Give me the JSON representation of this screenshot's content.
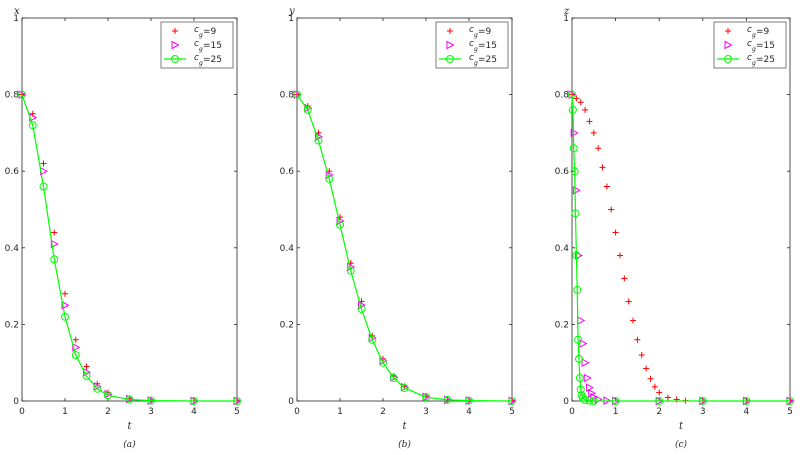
{
  "chart_data": [
    {
      "type": "line",
      "caption": "(a)",
      "xlabel": "t",
      "ylabel": "x",
      "xlim": [
        0,
        5
      ],
      "ylim": [
        0,
        1
      ],
      "xticks": [
        0,
        1,
        2,
        3,
        4,
        5
      ],
      "yticks": [
        0,
        0.2,
        0.4,
        0.6,
        0.8,
        1
      ],
      "legend_position": "top-right",
      "legend": [
        {
          "text": "c",
          "sub": "g",
          "value": "=9",
          "marker": "plus",
          "color": "#ff0000"
        },
        {
          "text": "c",
          "sub": "g",
          "value": "=15",
          "marker": "triangle-right",
          "color": "#ff00ff"
        },
        {
          "text": "c",
          "sub": "g",
          "value": "=25",
          "marker": "circle-line",
          "color": "#00ff00"
        }
      ],
      "series": [
        {
          "name": "c_g=9",
          "marker": "plus",
          "color": "#ff0000",
          "x": [
            0,
            0.25,
            0.5,
            0.75,
            1.0,
            1.25,
            1.5,
            1.75,
            2.0,
            2.5,
            3.0,
            4.0,
            5.0
          ],
          "y": [
            0.8,
            0.75,
            0.62,
            0.44,
            0.28,
            0.16,
            0.09,
            0.045,
            0.022,
            0.006,
            0.002,
            0.0,
            0.0
          ]
        },
        {
          "name": "c_g=15",
          "marker": "triangle-right",
          "color": "#ff00ff",
          "x": [
            0,
            0.25,
            0.5,
            0.75,
            1.0,
            1.25,
            1.5,
            1.75,
            2.0,
            2.5,
            3.0,
            4.0,
            5.0
          ],
          "y": [
            0.8,
            0.74,
            0.6,
            0.41,
            0.25,
            0.14,
            0.075,
            0.038,
            0.018,
            0.005,
            0.001,
            0.0,
            0.0
          ]
        },
        {
          "name": "c_g=25",
          "marker": "circle-line",
          "color": "#00ff00",
          "x": [
            0,
            0.25,
            0.5,
            0.75,
            1.0,
            1.25,
            1.5,
            1.75,
            2.0,
            2.5,
            3.0,
            4.0,
            5.0
          ],
          "y": [
            0.8,
            0.72,
            0.56,
            0.37,
            0.22,
            0.12,
            0.065,
            0.032,
            0.015,
            0.004,
            0.001,
            0.0,
            0.0
          ]
        }
      ]
    },
    {
      "type": "line",
      "caption": "(b)",
      "xlabel": "t",
      "ylabel": "y",
      "xlim": [
        0,
        5
      ],
      "ylim": [
        0,
        1
      ],
      "xticks": [
        0,
        1,
        2,
        3,
        4,
        5
      ],
      "yticks": [
        0,
        0.2,
        0.4,
        0.6,
        0.8,
        1
      ],
      "legend_position": "top-right",
      "legend": [
        {
          "text": "c",
          "sub": "g",
          "value": "=9",
          "marker": "plus",
          "color": "#ff0000"
        },
        {
          "text": "c",
          "sub": "g",
          "value": "=15",
          "marker": "triangle-right",
          "color": "#ff00ff"
        },
        {
          "text": "c",
          "sub": "g",
          "value": "=25",
          "marker": "circle-line",
          "color": "#00ff00"
        }
      ],
      "series": [
        {
          "name": "c_g=9",
          "marker": "plus",
          "color": "#ff0000",
          "x": [
            0,
            0.25,
            0.5,
            0.75,
            1.0,
            1.25,
            1.5,
            1.75,
            2.0,
            2.25,
            2.5,
            3.0,
            3.5,
            4.0,
            5.0
          ],
          "y": [
            0.8,
            0.77,
            0.7,
            0.6,
            0.48,
            0.36,
            0.26,
            0.17,
            0.11,
            0.065,
            0.038,
            0.012,
            0.004,
            0.001,
            0.0
          ]
        },
        {
          "name": "c_g=15",
          "marker": "triangle-right",
          "color": "#ff00ff",
          "x": [
            0,
            0.25,
            0.5,
            0.75,
            1.0,
            1.25,
            1.5,
            1.75,
            2.0,
            2.25,
            2.5,
            3.0,
            3.5,
            4.0,
            5.0
          ],
          "y": [
            0.8,
            0.765,
            0.69,
            0.59,
            0.47,
            0.35,
            0.25,
            0.165,
            0.105,
            0.062,
            0.036,
            0.011,
            0.003,
            0.001,
            0.0
          ]
        },
        {
          "name": "c_g=25",
          "marker": "circle-line",
          "color": "#00ff00",
          "x": [
            0,
            0.25,
            0.5,
            0.75,
            1.0,
            1.25,
            1.5,
            1.75,
            2.0,
            2.25,
            2.5,
            3.0,
            3.5,
            4.0,
            5.0
          ],
          "y": [
            0.8,
            0.76,
            0.68,
            0.58,
            0.46,
            0.34,
            0.24,
            0.16,
            0.1,
            0.06,
            0.034,
            0.01,
            0.003,
            0.001,
            0.0
          ]
        }
      ]
    },
    {
      "type": "line",
      "caption": "(c)",
      "xlabel": "t",
      "ylabel": "z",
      "xlim": [
        0,
        5
      ],
      "ylim": [
        0,
        1
      ],
      "xticks": [
        0,
        1,
        2,
        3,
        4,
        5
      ],
      "yticks": [
        0,
        0.2,
        0.4,
        0.6,
        0.8,
        1
      ],
      "legend_position": "top-right",
      "legend": [
        {
          "text": "c",
          "sub": "g",
          "value": "=9",
          "marker": "plus",
          "color": "#ff0000"
        },
        {
          "text": "c",
          "sub": "g",
          "value": "=15",
          "marker": "triangle-right",
          "color": "#ff00ff"
        },
        {
          "text": "c",
          "sub": "g",
          "value": "=25",
          "marker": "circle-line",
          "color": "#00ff00"
        }
      ],
      "series": [
        {
          "name": "c_g=9",
          "marker": "plus",
          "color": "#ff0000",
          "x": [
            0,
            0.1,
            0.2,
            0.3,
            0.4,
            0.5,
            0.6,
            0.7,
            0.8,
            0.9,
            1.0,
            1.1,
            1.2,
            1.3,
            1.4,
            1.5,
            1.6,
            1.7,
            1.8,
            1.9,
            2.0,
            2.2,
            2.4,
            2.6,
            3.0,
            4.0,
            5.0
          ],
          "y": [
            0.8,
            0.79,
            0.78,
            0.76,
            0.73,
            0.7,
            0.66,
            0.61,
            0.56,
            0.5,
            0.44,
            0.38,
            0.32,
            0.26,
            0.21,
            0.16,
            0.12,
            0.085,
            0.058,
            0.037,
            0.022,
            0.009,
            0.004,
            0.001,
            0.0,
            0.0,
            0.0
          ]
        },
        {
          "name": "c_g=15",
          "marker": "triangle-right",
          "color": "#ff00ff",
          "x": [
            0,
            0.05,
            0.1,
            0.15,
            0.2,
            0.25,
            0.3,
            0.35,
            0.4,
            0.45,
            0.5,
            0.6,
            0.8,
            1.0,
            2.0,
            3.0,
            4.0,
            5.0
          ],
          "y": [
            0.8,
            0.7,
            0.55,
            0.38,
            0.21,
            0.15,
            0.1,
            0.06,
            0.035,
            0.02,
            0.01,
            0.004,
            0.001,
            0.0,
            0.0,
            0.0,
            0.0,
            0.0
          ]
        },
        {
          "name": "c_g=25",
          "marker": "circle-line",
          "color": "#00ff00",
          "x": [
            0,
            0.02,
            0.04,
            0.06,
            0.08,
            0.1,
            0.12,
            0.14,
            0.16,
            0.18,
            0.2,
            0.22,
            0.25,
            0.3,
            0.4,
            0.5,
            1.0,
            2.0,
            3.0,
            4.0,
            5.0
          ],
          "y": [
            0.8,
            0.76,
            0.66,
            0.6,
            0.49,
            0.38,
            0.29,
            0.16,
            0.11,
            0.06,
            0.03,
            0.015,
            0.008,
            0.003,
            0.001,
            0.0,
            0.0,
            0.0,
            0.0,
            0.0,
            0.0
          ]
        }
      ]
    }
  ]
}
